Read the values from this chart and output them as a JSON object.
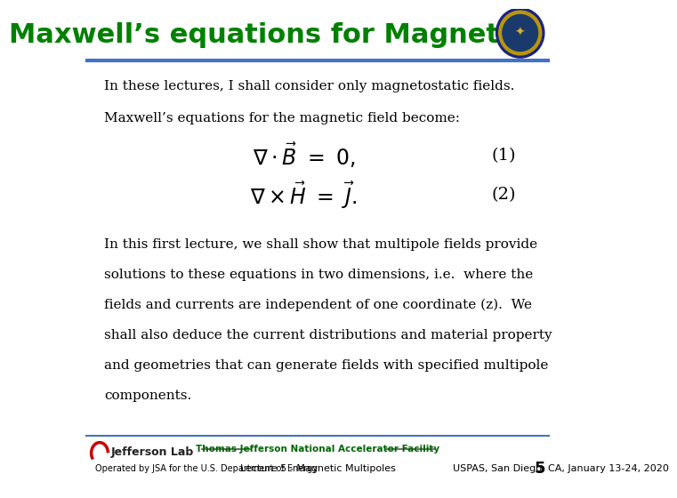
{
  "title": "Maxwell’s equations for Magnets",
  "title_color": "#008000",
  "title_fontsize": 22,
  "bg_color": "#ffffff",
  "header_line_color": "#4472c4",
  "footer_line_color": "#4472c4",
  "body_text_1": "In these lectures, I shall consider only magnetostatic fields.",
  "body_text_2": "Maxwell’s equations for the magnetic field become:",
  "eq1_label": "(1)",
  "eq2_label": "(2)",
  "body_text_3_lines": [
    "In this first lecture, we shall show that multipole fields provide",
    "solutions to these equations in two dimensions, i.e.  where the",
    "fields and currents are independent of one coordinate (z).  We",
    "shall also deduce the current distributions and material property",
    "and geometries that can generate fields with specified multipole",
    "components."
  ],
  "footer_lab": "Thomas Jefferson National Accelerator Facility",
  "footer_lab_color": "#006400",
  "footer_left": "Operated by JSA for the U.S. Department of Energy",
  "footer_center": "Lecture 5 - Magnetic Multipoles",
  "footer_right": "USPAS, San Diego, CA, January 13-24, 2020",
  "footer_page": "5",
  "footer_fontsize": 7,
  "text_color": "#000000",
  "body_fontsize": 11,
  "eq_fontsize": 14
}
